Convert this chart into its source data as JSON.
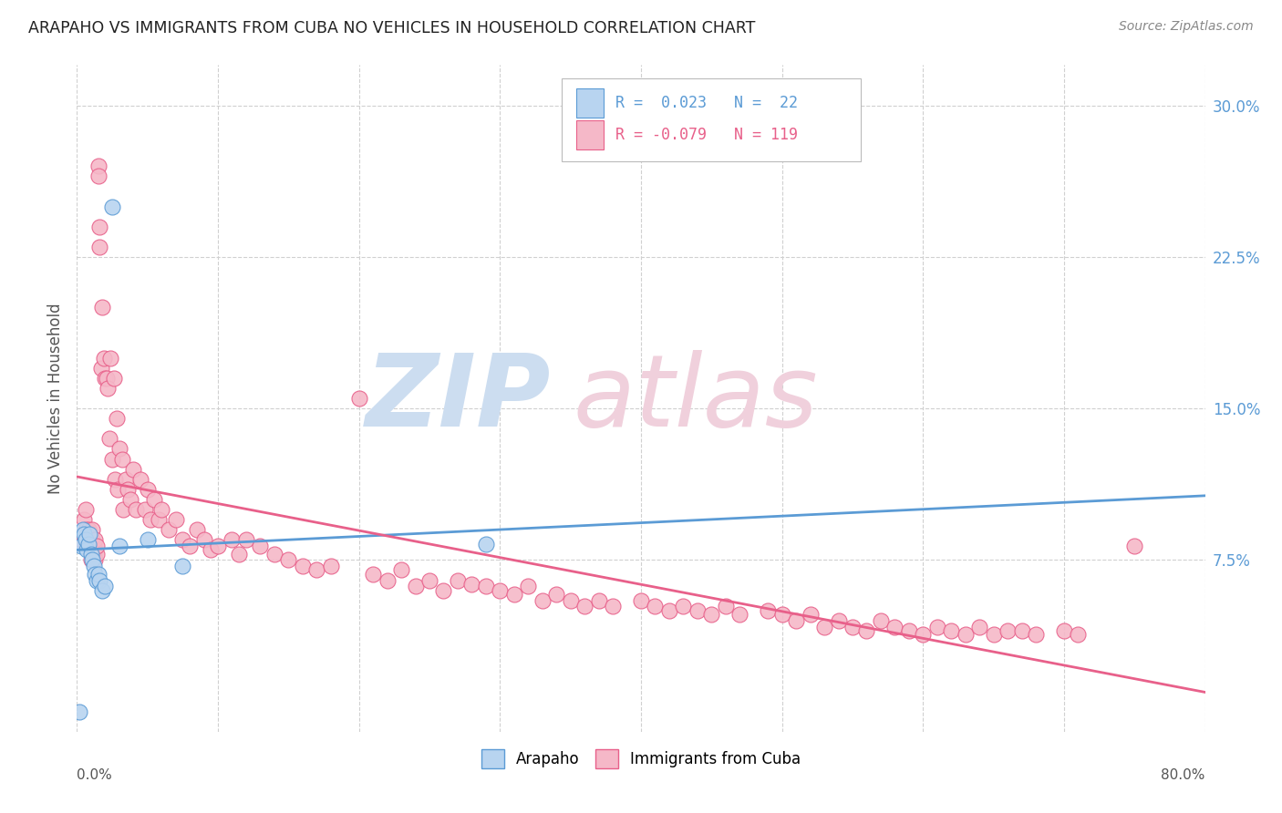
{
  "title": "ARAPAHO VS IMMIGRANTS FROM CUBA NO VEHICLES IN HOUSEHOLD CORRELATION CHART",
  "source": "Source: ZipAtlas.com",
  "ylabel": "No Vehicles in Household",
  "xmin": 0.0,
  "xmax": 0.8,
  "ymin": -0.01,
  "ymax": 0.32,
  "ytick_positions": [
    0.075,
    0.15,
    0.225,
    0.3
  ],
  "ytick_labels": [
    "7.5%",
    "15.0%",
    "22.5%",
    "30.0%"
  ],
  "color_arapaho": "#b8d4f0",
  "color_cuba": "#f5b8c8",
  "edge_arapaho": "#5b9bd5",
  "edge_cuba": "#e8608a",
  "watermark_zip_color": "#ccddf0",
  "watermark_atlas_color": "#f0d0dc",
  "arapaho_x": [
    0.002,
    0.003,
    0.004,
    0.005,
    0.006,
    0.007,
    0.008,
    0.009,
    0.01,
    0.011,
    0.012,
    0.013,
    0.014,
    0.015,
    0.016,
    0.018,
    0.02,
    0.025,
    0.03,
    0.05,
    0.075,
    0.29
  ],
  "arapaho_y": [
    0.0,
    0.082,
    0.09,
    0.088,
    0.085,
    0.08,
    0.083,
    0.088,
    0.078,
    0.075,
    0.072,
    0.068,
    0.065,
    0.068,
    0.065,
    0.06,
    0.062,
    0.25,
    0.082,
    0.085,
    0.072,
    0.083
  ],
  "cuba_x": [
    0.003,
    0.004,
    0.005,
    0.006,
    0.006,
    0.007,
    0.008,
    0.008,
    0.009,
    0.009,
    0.01,
    0.01,
    0.011,
    0.011,
    0.012,
    0.012,
    0.013,
    0.013,
    0.014,
    0.014,
    0.015,
    0.015,
    0.016,
    0.016,
    0.017,
    0.018,
    0.019,
    0.02,
    0.021,
    0.022,
    0.023,
    0.024,
    0.025,
    0.026,
    0.027,
    0.028,
    0.029,
    0.03,
    0.032,
    0.033,
    0.035,
    0.036,
    0.038,
    0.04,
    0.042,
    0.045,
    0.048,
    0.05,
    0.052,
    0.055,
    0.058,
    0.06,
    0.065,
    0.07,
    0.075,
    0.08,
    0.085,
    0.09,
    0.095,
    0.1,
    0.11,
    0.115,
    0.12,
    0.13,
    0.14,
    0.15,
    0.16,
    0.17,
    0.18,
    0.2,
    0.21,
    0.22,
    0.23,
    0.24,
    0.25,
    0.26,
    0.27,
    0.28,
    0.29,
    0.3,
    0.31,
    0.32,
    0.33,
    0.34,
    0.35,
    0.36,
    0.37,
    0.38,
    0.4,
    0.41,
    0.42,
    0.43,
    0.44,
    0.45,
    0.46,
    0.47,
    0.49,
    0.5,
    0.51,
    0.52,
    0.53,
    0.54,
    0.55,
    0.56,
    0.57,
    0.58,
    0.59,
    0.6,
    0.61,
    0.62,
    0.63,
    0.64,
    0.65,
    0.66,
    0.67,
    0.68,
    0.7,
    0.71,
    0.75
  ],
  "cuba_y": [
    0.085,
    0.088,
    0.095,
    0.09,
    0.1,
    0.085,
    0.082,
    0.09,
    0.08,
    0.088,
    0.075,
    0.082,
    0.085,
    0.09,
    0.078,
    0.082,
    0.075,
    0.085,
    0.078,
    0.082,
    0.27,
    0.265,
    0.24,
    0.23,
    0.17,
    0.2,
    0.175,
    0.165,
    0.165,
    0.16,
    0.135,
    0.175,
    0.125,
    0.165,
    0.115,
    0.145,
    0.11,
    0.13,
    0.125,
    0.1,
    0.115,
    0.11,
    0.105,
    0.12,
    0.1,
    0.115,
    0.1,
    0.11,
    0.095,
    0.105,
    0.095,
    0.1,
    0.09,
    0.095,
    0.085,
    0.082,
    0.09,
    0.085,
    0.08,
    0.082,
    0.085,
    0.078,
    0.085,
    0.082,
    0.078,
    0.075,
    0.072,
    0.07,
    0.072,
    0.155,
    0.068,
    0.065,
    0.07,
    0.062,
    0.065,
    0.06,
    0.065,
    0.063,
    0.062,
    0.06,
    0.058,
    0.062,
    0.055,
    0.058,
    0.055,
    0.052,
    0.055,
    0.052,
    0.055,
    0.052,
    0.05,
    0.052,
    0.05,
    0.048,
    0.052,
    0.048,
    0.05,
    0.048,
    0.045,
    0.048,
    0.042,
    0.045,
    0.042,
    0.04,
    0.045,
    0.042,
    0.04,
    0.038,
    0.042,
    0.04,
    0.038,
    0.042,
    0.038,
    0.04,
    0.04,
    0.038,
    0.04,
    0.038,
    0.082
  ]
}
